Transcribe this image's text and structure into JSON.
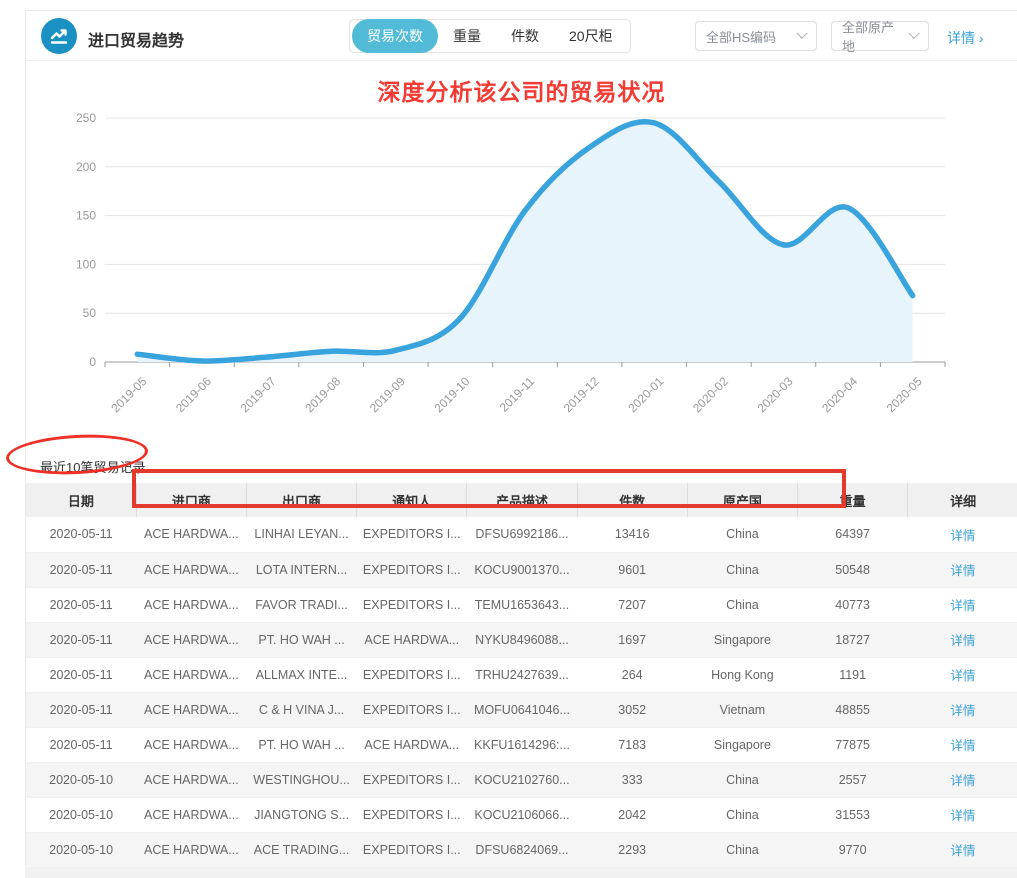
{
  "header": {
    "title": "进口贸易趋势",
    "tabs": [
      {
        "id": "trade-count",
        "label": "贸易次数",
        "active": true
      },
      {
        "id": "weight",
        "label": "重量",
        "active": false
      },
      {
        "id": "quantity",
        "label": "件数",
        "active": false
      },
      {
        "id": "container-20ft",
        "label": "20尺柜",
        "active": false
      }
    ],
    "filters": [
      {
        "id": "hs-code",
        "label": "全部HS编码"
      },
      {
        "id": "origin",
        "label": "全部原产地"
      }
    ],
    "details_link": "详情 ›"
  },
  "annotations": {
    "chart_title": "深度分析该公司的贸易状况",
    "color": "#f43a33"
  },
  "chart_data": {
    "type": "area",
    "x": [
      "2019-05",
      "2019-06",
      "2019-07",
      "2019-08",
      "2019-09",
      "2019-10",
      "2019-11",
      "2019-12",
      "2020-01",
      "2020-02",
      "2020-03",
      "2020-04",
      "2020-05"
    ],
    "values": [
      8,
      1,
      5,
      11,
      12,
      45,
      155,
      220,
      245,
      185,
      120,
      158,
      68
    ],
    "title": "",
    "xlabel": "",
    "ylabel": "",
    "ylim": [
      0,
      250
    ],
    "yticks": [
      0,
      50,
      100,
      150,
      200,
      250
    ],
    "grid": true,
    "legend": "none",
    "line_color": "#38a3dc",
    "fill_color": "#e8f4fb",
    "axis_color": "#999999",
    "grid_color": "#e4e4e4",
    "tick_label_color": "#999999"
  },
  "table": {
    "caption": "最近10笔贸易记录",
    "columns": [
      "日期",
      "进口商",
      "出口商",
      "通知人",
      "产品描述",
      "件数",
      "原产国",
      "重量",
      "详细"
    ],
    "detail_label": "详情",
    "rows": [
      [
        "2020-05-11",
        "ACE HARDWA...",
        "LINHAI LEYAN...",
        "EXPEDITORS I...",
        "DFSU6992186...",
        "13416",
        "China",
        "64397"
      ],
      [
        "2020-05-11",
        "ACE HARDWA...",
        "LOTA INTERN...",
        "EXPEDITORS I...",
        "KOCU9001370...",
        "9601",
        "China",
        "50548"
      ],
      [
        "2020-05-11",
        "ACE HARDWA...",
        "FAVOR TRADI...",
        "EXPEDITORS I...",
        "TEMU1653643...",
        "7207",
        "China",
        "40773"
      ],
      [
        "2020-05-11",
        "ACE HARDWA...",
        "PT. HO WAH ...",
        "ACE HARDWA...",
        "NYKU8496088...",
        "1697",
        "Singapore",
        "18727"
      ],
      [
        "2020-05-11",
        "ACE HARDWA...",
        "ALLMAX INTE...",
        "EXPEDITORS I...",
        "TRHU2427639...",
        "264",
        "Hong Kong",
        "1191"
      ],
      [
        "2020-05-11",
        "ACE HARDWA...",
        "C & H VINA J...",
        "EXPEDITORS I...",
        "MOFU0641046...",
        "3052",
        "Vietnam",
        "48855"
      ],
      [
        "2020-05-11",
        "ACE HARDWA...",
        "PT. HO WAH ...",
        "ACE HARDWA...",
        "KKFU1614296:...",
        "7183",
        "Singapore",
        "77875"
      ],
      [
        "2020-05-10",
        "ACE HARDWA...",
        "WESTINGHOU...",
        "EXPEDITORS I...",
        "KOCU2102760...",
        "333",
        "China",
        "2557"
      ],
      [
        "2020-05-10",
        "ACE HARDWA...",
        "JIANGTONG S...",
        "EXPEDITORS I...",
        "KOCU2106066...",
        "2042",
        "China",
        "31553"
      ],
      [
        "2020-05-10",
        "ACE HARDWA...",
        "ACE TRADING...",
        "EXPEDITORS I...",
        "DFSU6824069...",
        "2293",
        "China",
        "9770"
      ]
    ]
  },
  "colors": {
    "accent": "#38a3dc",
    "tab_active": "#52bbd8",
    "link": "#3aa0d6",
    "logo": "#1b90c2"
  }
}
